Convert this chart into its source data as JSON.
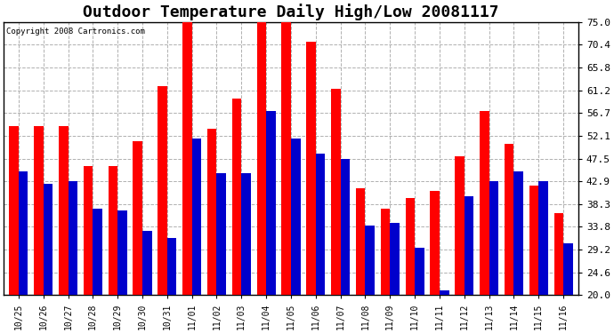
{
  "title": "Outdoor Temperature Daily High/Low 20081117",
  "copyright": "Copyright 2008 Cartronics.com",
  "labels": [
    "10/25",
    "10/26",
    "10/27",
    "10/28",
    "10/29",
    "10/30",
    "10/31",
    "11/01",
    "11/02",
    "11/03",
    "11/04",
    "11/05",
    "11/06",
    "11/07",
    "11/08",
    "11/09",
    "11/10",
    "11/11",
    "11/12",
    "11/13",
    "11/14",
    "11/15",
    "11/16"
  ],
  "highs": [
    54.0,
    54.0,
    54.0,
    46.0,
    46.0,
    51.0,
    62.0,
    75.0,
    53.5,
    59.5,
    75.0,
    75.5,
    71.0,
    61.5,
    41.5,
    37.5,
    39.5,
    41.0,
    48.0,
    57.0,
    50.5,
    42.0,
    36.5
  ],
  "lows": [
    45.0,
    42.5,
    43.0,
    37.5,
    37.0,
    33.0,
    31.5,
    51.5,
    44.5,
    44.5,
    57.0,
    51.5,
    48.5,
    47.5,
    34.0,
    34.5,
    29.5,
    21.0,
    40.0,
    43.0,
    45.0,
    43.0,
    30.5
  ],
  "high_color": "#ff0000",
  "low_color": "#0000cc",
  "background_color": "#ffffff",
  "plot_background": "#ffffff",
  "grid_color": "#b0b0b0",
  "title_fontsize": 13,
  "ylabel_values": [
    20.0,
    24.6,
    29.2,
    33.8,
    38.3,
    42.9,
    47.5,
    52.1,
    56.7,
    61.2,
    65.8,
    70.4,
    75.0
  ],
  "ymin": 20.0,
  "ymax": 75.0,
  "bar_bottom": 20.0
}
